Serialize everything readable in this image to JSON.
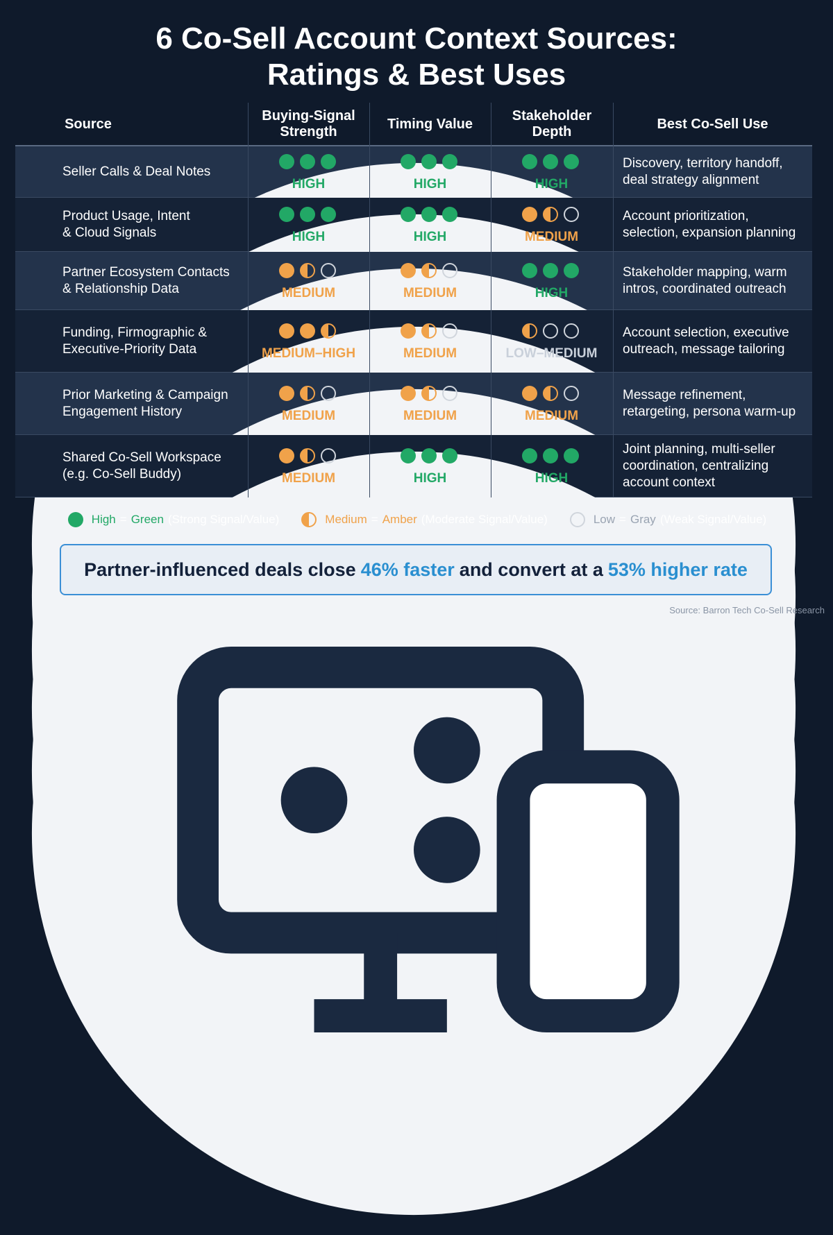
{
  "title": [
    "6 Co-Sell Account Context Sources:",
    "Ratings & Best Uses"
  ],
  "table": {
    "columns": [
      "Source",
      "Buying-Signal Strength",
      "Timing Value",
      "Stakeholder Depth",
      "Best Co-Sell Use"
    ],
    "rows": [
      {
        "source": [
          "Seller Calls & Deal Notes"
        ],
        "ratings": [
          {
            "dots": 3,
            "label": "HIGH",
            "color": "#22a866"
          },
          {
            "dots": 3,
            "label": "HIGH",
            "color": "#22a866"
          },
          {
            "dots": 3,
            "label": "HIGH",
            "color": "#22a866"
          }
        ],
        "use": [
          "Discovery, territory handoff,",
          "deal strategy alignment"
        ]
      },
      {
        "source": [
          "Product Usage, Intent",
          "& Cloud Signals"
        ],
        "ratings": [
          {
            "dots": 3,
            "label": "HIGH",
            "color": "#22a866"
          },
          {
            "dots": 3,
            "label": "HIGH",
            "color": "#22a866"
          },
          {
            "dots": 1.5,
            "label": "MEDIUM",
            "color": "#f0a24a"
          }
        ],
        "use": [
          "Account prioritization,",
          "selection, expansion planning"
        ]
      },
      {
        "source": [
          "Partner Ecosystem Contacts",
          "& Relationship Data"
        ],
        "ratings": [
          {
            "dots": 1.5,
            "label": "MEDIUM",
            "color": "#f0a24a"
          },
          {
            "dots": 1.5,
            "label": "MEDIUM",
            "color": "#f0a24a"
          },
          {
            "dots": 3,
            "label": "HIGH",
            "color": "#22a866"
          }
        ],
        "use": [
          "Stakeholder mapping, warm",
          "intros, coordinated outreach"
        ]
      },
      {
        "source": [
          "Funding, Firmographic &",
          "Executive-Priority Data"
        ],
        "ratings": [
          {
            "dots": 2.5,
            "label": "MEDIUM–HIGH",
            "color": "#f0a24a"
          },
          {
            "dots": 1.5,
            "label": "MEDIUM",
            "color": "#f0a24a"
          },
          {
            "dots": 0.5,
            "label": "LOW–MEDIUM",
            "color": "#f0a24a",
            "label_color": "#c9d0da"
          }
        ],
        "use": [
          "Account selection, executive",
          "outreach, message tailoring"
        ]
      },
      {
        "source": [
          "Prior Marketing & Campaign",
          "Engagement History"
        ],
        "ratings": [
          {
            "dots": 1.5,
            "label": "MEDIUM",
            "color": "#f0a24a"
          },
          {
            "dots": 1.5,
            "label": "MEDIUM",
            "color": "#f0a24a"
          },
          {
            "dots": 1.5,
            "label": "MEDIUM",
            "color": "#f0a24a"
          }
        ],
        "use": [
          "Message refinement,",
          "retargeting, persona warm-up"
        ]
      },
      {
        "source": [
          "Shared Co-Sell Workspace",
          "(e.g. Co-Sell Buddy)"
        ],
        "ratings": [
          {
            "dots": 1.5,
            "label": "MEDIUM",
            "color": "#f0a24a"
          },
          {
            "dots": 3,
            "label": "HIGH",
            "color": "#22a866"
          },
          {
            "dots": 3,
            "label": "HIGH",
            "color": "#22a866"
          }
        ],
        "use": [
          "Joint planning, multi-seller",
          "coordination, centralizing",
          "account context"
        ]
      }
    ]
  },
  "legend": [
    {
      "label": "High",
      "sep": "=",
      "color_name": "Green",
      "note": "(Strong Signal/Value)",
      "dots": 1,
      "color": "#22a866"
    },
    {
      "label": "Medium",
      "sep": "=",
      "color_name": "Amber",
      "note": "(Moderate Signal/Value)",
      "dots": 0.5,
      "color": "#f0a24a"
    },
    {
      "label": "Low",
      "sep": "=",
      "color_name": "Gray",
      "note": "(Weak Signal/Value)",
      "dots": 0,
      "color": "#9aa4b2"
    }
  ],
  "callout": [
    "Partner-influenced deals close",
    "46% faster",
    "and convert at a",
    "53% higher rate"
  ],
  "source": "Source: Barron Tech Co-Sell Research"
}
